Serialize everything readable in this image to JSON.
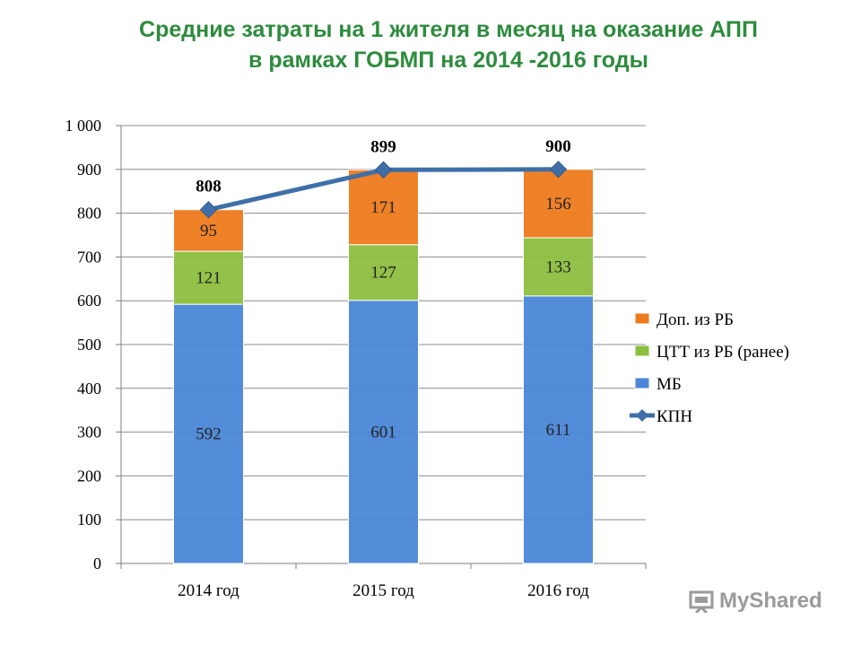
{
  "title_line1": "Средние затраты на 1 жителя в месяц на оказание АПП",
  "title_line2": "в рамках ГОБМП  на 2014 -2016 годы",
  "watermark": "MyShared",
  "chart_data": {
    "type": "bar",
    "stacked": true,
    "categories": [
      "2014 год",
      "2015 год",
      "2016 год"
    ],
    "ylim": [
      0,
      1000
    ],
    "yticks": [
      0,
      100,
      200,
      300,
      400,
      500,
      600,
      700,
      800,
      900,
      1000
    ],
    "ytick_labels": [
      "0",
      "100",
      "200",
      "300",
      "400",
      "500",
      "600",
      "700",
      "800",
      "900",
      "1 000"
    ],
    "grid": true,
    "legend_position": "right",
    "series": [
      {
        "name": "МБ",
        "type": "bar",
        "color": "#4a86d6",
        "values": [
          592,
          601,
          611
        ],
        "labels": [
          "592",
          "601",
          "611"
        ]
      },
      {
        "name": "ЦТТ из РБ (ранее)",
        "type": "bar",
        "color": "#8cbf3f",
        "values": [
          121,
          127,
          133
        ],
        "labels": [
          "121",
          "127",
          "133"
        ]
      },
      {
        "name": "Доп. из РБ",
        "type": "bar",
        "color": "#ee7a1e",
        "values": [
          95,
          171,
          156
        ],
        "labels": [
          "95",
          "171",
          "156"
        ]
      },
      {
        "name": "КПН",
        "type": "line",
        "color": "#3f6fa8",
        "values": [
          808,
          899,
          900
        ],
        "labels": [
          "808",
          "899",
          "900"
        ]
      }
    ],
    "legend_order": [
      "Доп. из РБ",
      "ЦТТ из РБ (ранее)",
      "МБ",
      "КПН"
    ]
  }
}
